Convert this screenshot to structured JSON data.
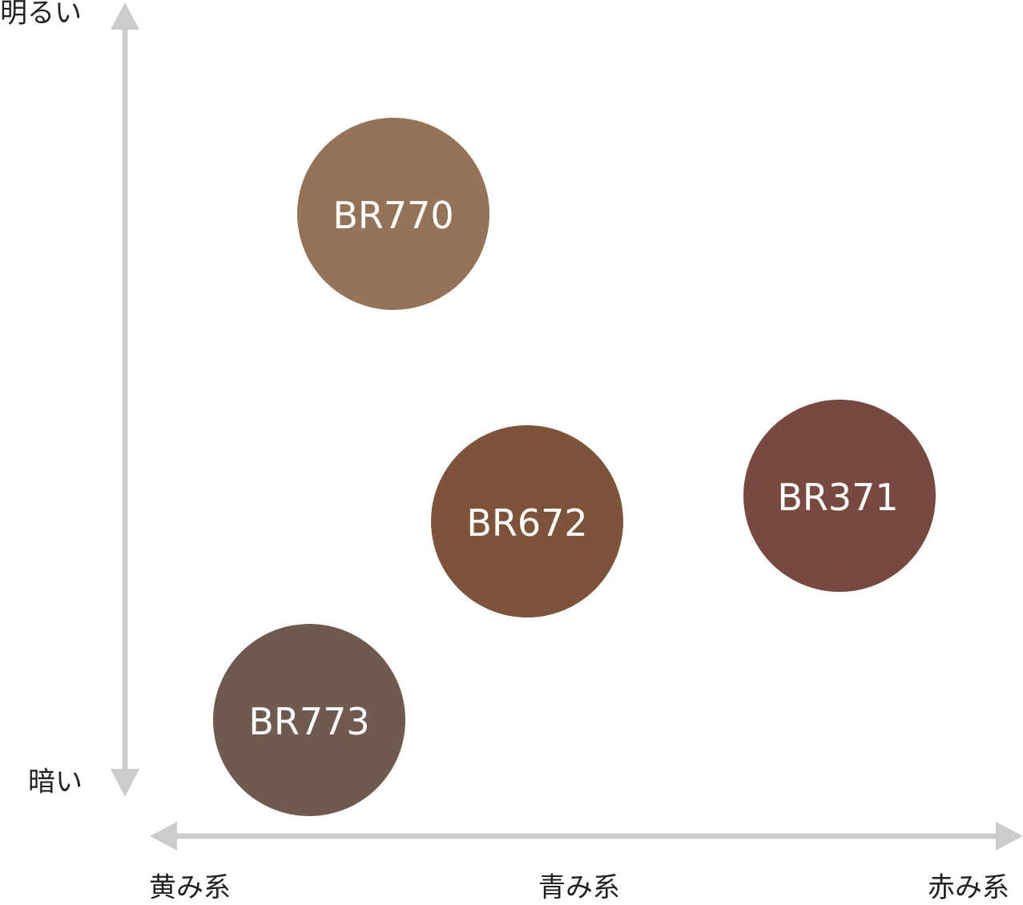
{
  "axes": {
    "vertical": {
      "top": "明るい",
      "bottom": "暗い"
    },
    "horizontal": {
      "left": "黄み系",
      "middle": "青み系",
      "right": "赤み系"
    }
  },
  "nodes": [
    {
      "label": "BR770",
      "color": "#957359"
    },
    {
      "label": "BR672",
      "color": "#7d5339"
    },
    {
      "label": "BR371",
      "color": "#77493f"
    },
    {
      "label": "BR773",
      "color": "#705a50"
    }
  ]
}
